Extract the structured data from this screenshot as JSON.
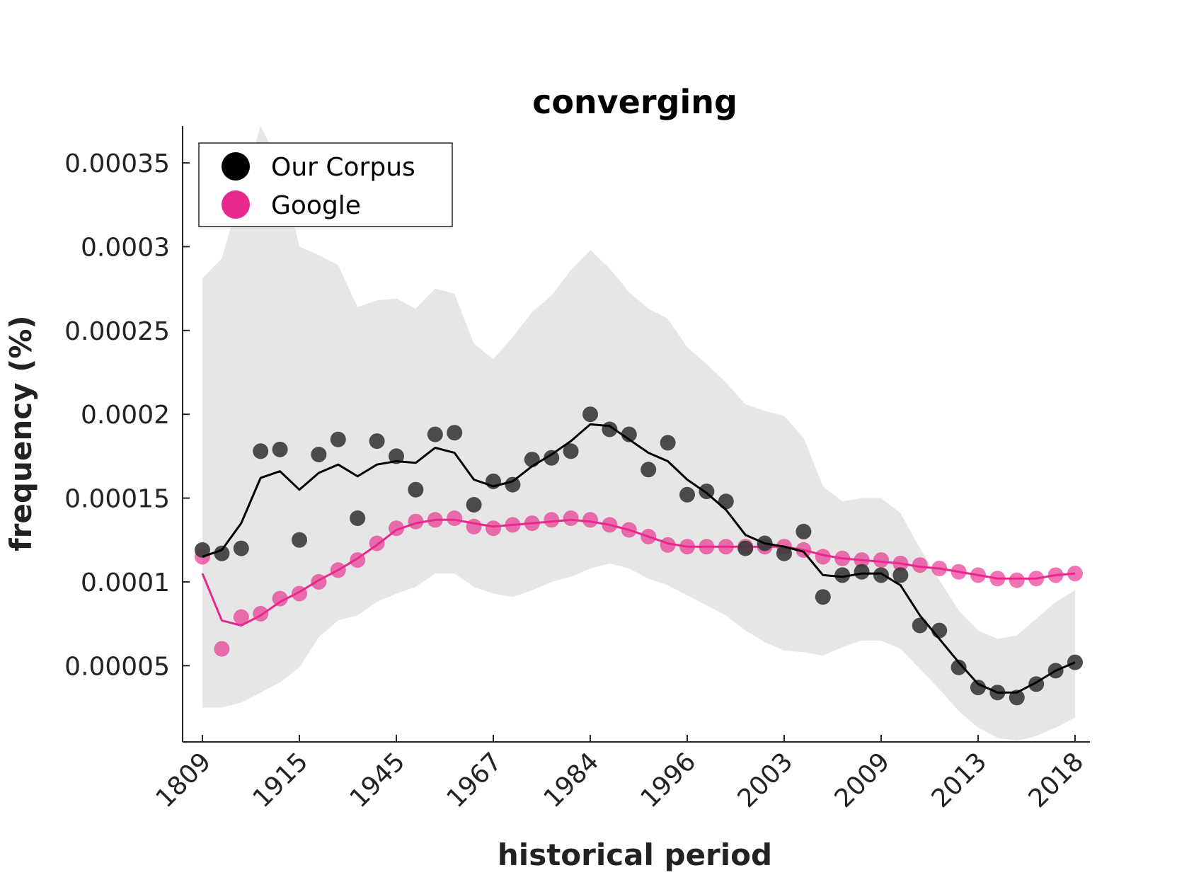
{
  "colors": {
    "corpus": "#3a3a3a",
    "corpus_line": "#000000",
    "google": "#e8288c",
    "band": "#e6e6e6"
  },
  "chart_data": {
    "type": "scatter",
    "title": "converging",
    "xlabel": "historical period",
    "ylabel": "frequency (%)",
    "x_tick_labels": [
      "1809",
      "1915",
      "1945",
      "1967",
      "1984",
      "1996",
      "2003",
      "2009",
      "2013",
      "2018"
    ],
    "y_tick_labels": [
      "0.00005",
      "0.0001",
      "0.00015",
      "0.0002",
      "0.00025",
      "0.0003",
      "0.00035"
    ],
    "ylim": [
      4.5e-06,
      0.000372
    ],
    "grid": false,
    "legend_position": "top-left",
    "series": [
      {
        "name": "Our Corpus",
        "color": "#3a3a3a",
        "points": [
          0.000119,
          0.000117,
          0.00012,
          0.000178,
          0.000179,
          0.000125,
          0.000176,
          0.000185,
          0.000138,
          0.000184,
          0.000175,
          0.000155,
          0.000188,
          0.000189,
          0.000146,
          0.00016,
          0.000158,
          0.000173,
          0.000174,
          0.000178,
          0.0002,
          0.000191,
          0.000188,
          0.000167,
          0.000183,
          0.000152,
          0.000154,
          0.000148,
          0.00012,
          0.000123,
          0.000117,
          0.00013,
          9.1e-05,
          0.000104,
          0.000106,
          0.000104,
          0.000104,
          7.4e-05,
          7.1e-05,
          4.9e-05,
          3.7e-05,
          3.4e-05,
          3.1e-05,
          3.9e-05,
          4.7e-05,
          5.2e-05
        ],
        "trend": [
          0.000115,
          0.000119,
          0.000135,
          0.000162,
          0.000166,
          0.000155,
          0.000165,
          0.00017,
          0.000163,
          0.00017,
          0.000172,
          0.000171,
          0.00018,
          0.000177,
          0.000161,
          0.000157,
          0.00016,
          0.000169,
          0.000176,
          0.000184,
          0.000194,
          0.000193,
          0.000185,
          0.000177,
          0.000172,
          0.000161,
          0.000153,
          0.000143,
          0.000128,
          0.000123,
          0.000121,
          0.000118,
          0.000104,
          0.000103,
          0.000105,
          0.000105,
          9.8e-05,
          8e-05,
          6.6e-05,
          5.2e-05,
          3.9e-05,
          3.4e-05,
          3.4e-05,
          4e-05,
          4.7e-05,
          5.2e-05
        ]
      },
      {
        "name": "Google",
        "color": "#e8288c",
        "points": [
          0.000115,
          6e-05,
          7.9e-05,
          8.1e-05,
          9e-05,
          9.3e-05,
          0.0001,
          0.000107,
          0.000113,
          0.000123,
          0.000132,
          0.000136,
          0.000137,
          0.000138,
          0.000133,
          0.000132,
          0.000134,
          0.000135,
          0.000137,
          0.000138,
          0.000137,
          0.000134,
          0.000131,
          0.000127,
          0.000122,
          0.000121,
          0.000121,
          0.000121,
          0.000121,
          0.000121,
          0.000121,
          0.000119,
          0.000115,
          0.000114,
          0.000113,
          0.000113,
          0.000111,
          0.00011,
          0.000108,
          0.000106,
          0.000104,
          0.000102,
          0.000101,
          0.000102,
          0.000104,
          0.000105
        ],
        "trend": [
          0.000105,
          7.7e-05,
          7.4e-05,
          8e-05,
          8.8e-05,
          9.4e-05,
          0.000101,
          0.000107,
          0.000114,
          0.000122,
          0.000131,
          0.000135,
          0.000137,
          0.000137,
          0.000135,
          0.000133,
          0.000134,
          0.000135,
          0.000136,
          0.000137,
          0.000136,
          0.000134,
          0.000131,
          0.000127,
          0.000123,
          0.000121,
          0.000121,
          0.000121,
          0.000121,
          0.000121,
          0.000121,
          0.000119,
          0.000116,
          0.000114,
          0.000113,
          0.000112,
          0.000111,
          0.000109,
          0.000108,
          0.000106,
          0.000104,
          0.000102,
          0.000102,
          0.000102,
          0.000104,
          0.000105
        ]
      }
    ],
    "band": {
      "upper": [
        0.000281,
        0.000293,
        0.000333,
        0.000372,
        0.000349,
        0.0003,
        0.000295,
        0.000289,
        0.000264,
        0.000268,
        0.000269,
        0.000263,
        0.000275,
        0.000272,
        0.000242,
        0.000233,
        0.000246,
        0.000261,
        0.000271,
        0.000286,
        0.000298,
        0.000287,
        0.000273,
        0.000263,
        0.000257,
        0.00024,
        0.00023,
        0.000219,
        0.000206,
        0.000202,
        0.000199,
        0.000186,
        0.000157,
        0.000148,
        0.00015,
        0.00015,
        0.000141,
        0.00012,
        0.000101,
        8.3e-05,
        7.1e-05,
        6.6e-05,
        6.8e-05,
        7.8e-05,
        8.8e-05,
        9.5e-05
      ],
      "lower": [
        2.5e-05,
        2.5e-05,
        2.8e-05,
        3.4e-05,
        4e-05,
        4.9e-05,
        6.7e-05,
        7.7e-05,
        8e-05,
        8.8e-05,
        9.3e-05,
        9.7e-05,
        0.000105,
        0.000105,
        9.7e-05,
        9.3e-05,
        9.1e-05,
        9.5e-05,
        0.0001,
        0.000103,
        0.000108,
        0.000111,
        0.000108,
        0.000102,
        9.8e-05,
        9.2e-05,
        8.6e-05,
        8e-05,
        7.1e-05,
        6.4e-05,
        5.9e-05,
        5.8e-05,
        5.6e-05,
        6.1e-05,
        6.5e-05,
        6.5e-05,
        6e-05,
        4.8e-05,
        3.6e-05,
        2.3e-05,
        1.3e-05,
        7e-06,
        5e-06,
        8e-06,
        1.3e-05,
        1.9e-05
      ]
    }
  }
}
